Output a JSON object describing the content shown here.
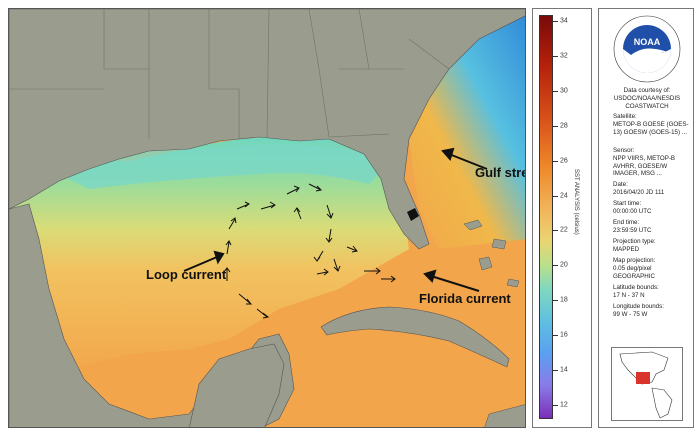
{
  "annotations": {
    "gulf_stream": "Gulf stream",
    "loop_current": "Loop current",
    "florida_current": "Florida current"
  },
  "colorbar": {
    "title": "SST ANALYSIS (celsius)",
    "ticks": [
      "34",
      "32",
      "30",
      "28",
      "26",
      "24",
      "22",
      "20",
      "18",
      "16",
      "14",
      "12"
    ]
  },
  "info": {
    "courtesy_header": "Data courtesy of:",
    "courtesy_value": "USDOC/NOAA/NESDIS COASTWATCH",
    "satellite_label": "Satellite:",
    "satellite_value": "METOP-B GOESE (GOES-13) GOESW (GOES-15) ...",
    "sensor_label": "Sensor:",
    "sensor_value": "NPP VIIRS, METOP-B AVHRR, GOESE/W IMAGER, MSG ...",
    "date_label": "Date:",
    "date_value": "2016/04/20 JD 111",
    "start_label": "Start time:",
    "start_value": "00:00:00 UTC",
    "end_label": "End time:",
    "end_value": "23:59:59 UTC",
    "projection_label": "Projection type:",
    "projection_value": "MAPPED",
    "mapproj_label": "Map projection:",
    "mapproj_value": "0.05 deg/pixel GEOGRAPHIC",
    "lat_label": "Latitude bounds:",
    "lat_value": "17 N - 37 N",
    "lon_label": "Longitude bounds:",
    "lon_value": "99 W - 75 W"
  },
  "logo": {
    "text": "NOAA",
    "ring_text": "NATIONAL OCEANIC AND ATMOSPHERIC ADMINISTRATION · U.S. DEPARTMENT OF COMMERCE"
  },
  "colors": {
    "land": "#9a9d8e",
    "warm_water": "#f2a54a",
    "cool_water": "#7fd8c0",
    "noaa_blue": "#1f4fa8"
  }
}
